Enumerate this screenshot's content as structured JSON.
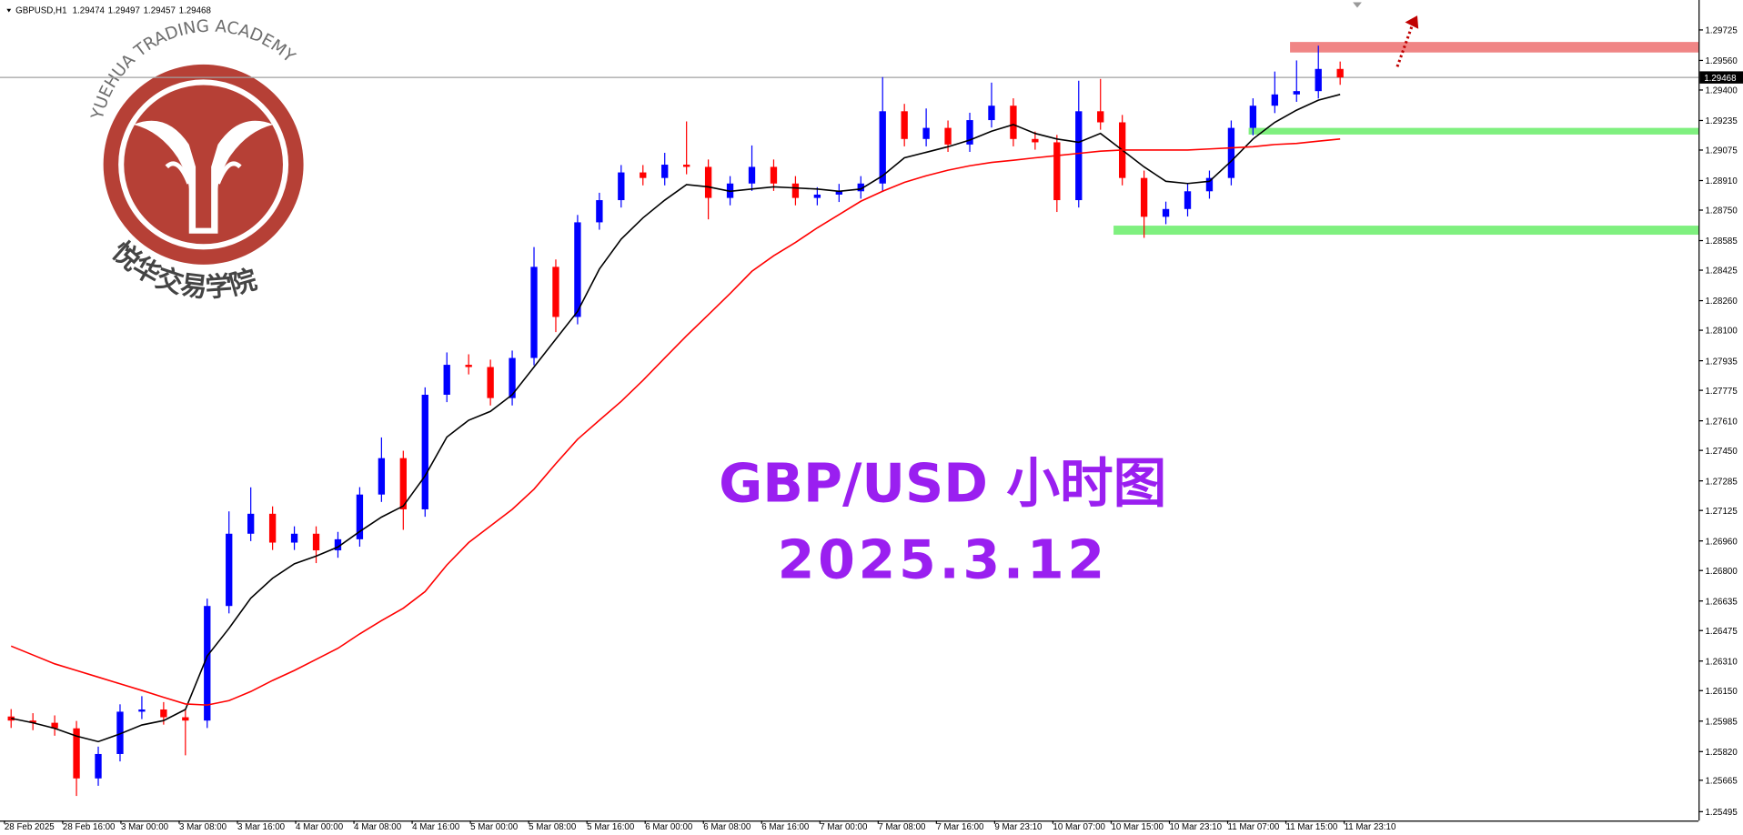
{
  "chart_data": {
    "type": "candlestick",
    "symbol": "GBPUSD,H1",
    "ohlc": [
      1.29474,
      1.29497,
      1.29457,
      1.29468
    ],
    "title": "GBP/USD 小时图",
    "subtitle": "2025.3.12",
    "watermark": {
      "arc": "YUEHUA TRADING ACADEMY",
      "name": "悦华交易学院"
    },
    "xlabels": [
      "28 Feb 2025",
      "28 Feb 16:00",
      "3 Mar 00:00",
      "3 Mar 08:00",
      "3 Mar 16:00",
      "4 Mar 00:00",
      "4 Mar 08:00",
      "4 Mar 16:00",
      "5 Mar 00:00",
      "5 Mar 08:00",
      "5 Mar 16:00",
      "6 Mar 00:00",
      "6 Mar 08:00",
      "6 Mar 16:00",
      "7 Mar 00:00",
      "7 Mar 08:00",
      "7 Mar 16:00",
      "9 Mar 23:10",
      "10 Mar 07:00",
      "10 Mar 15:00",
      "10 Mar 23:10",
      "11 Mar 07:00",
      "11 Mar 15:00",
      "11 Mar 23:10"
    ],
    "ylim": [
      1.25447,
      1.29887
    ],
    "yticks": [
      1.29725,
      {
        "value": 1.2956,
        "label": "1.29560"
      },
      {
        "value": 1.294,
        "label": "1.29400"
      },
      1.29235,
      1.29075,
      {
        "value": 1.2891,
        "label": "1.28910"
      },
      {
        "value": 1.2875,
        "label": "1.28750"
      },
      1.28585,
      1.28425,
      {
        "value": 1.2826,
        "label": "1.28260"
      },
      {
        "value": 1.281,
        "label": "1.28100"
      },
      1.27935,
      1.27775,
      {
        "value": 1.2761,
        "label": "1.27610"
      },
      {
        "value": 1.2745,
        "label": "1.27450"
      },
      1.27285,
      1.27125,
      {
        "value": 1.2696,
        "label": "1.26960"
      },
      {
        "value": 1.268,
        "label": "1.26800"
      },
      1.26635,
      1.26475,
      {
        "value": 1.2631,
        "label": "1.26310"
      },
      {
        "value": 1.2615,
        "label": "1.26150"
      },
      1.25985,
      {
        "value": 1.2582,
        "label": "1.25820"
      },
      1.25665,
      1.25495
    ],
    "bid": 1.29468,
    "candles": {
      "up_color": "#0000ff",
      "down_color": "#ff0000",
      "open": [
        1.2601,
        1.25988,
        1.25976,
        1.25946,
        1.25675,
        1.25807,
        1.26036,
        1.26048,
        1.26006,
        1.25988,
        1.26608,
        1.26999,
        1.27107,
        1.26951,
        1.26999,
        1.26909,
        1.26969,
        1.27211,
        1.27408,
        1.27131,
        1.27751,
        1.27913,
        1.27901,
        1.27733,
        1.2795,
        1.28443,
        1.28172,
        1.28684,
        1.28804,
        1.28954,
        1.28924,
        1.28996,
        1.28984,
        1.28816,
        1.28894,
        1.28984,
        1.28894,
        1.28816,
        1.28834,
        1.28852,
        1.28894,
        1.29285,
        1.29135,
        1.29195,
        1.29105,
        1.29237,
        1.29315,
        1.29135,
        1.29117,
        1.28804,
        1.29285,
        1.29225,
        1.28924,
        1.28714,
        1.28756,
        1.28852,
        1.28924,
        1.29195,
        1.29315,
        1.29376,
        1.29394,
        1.29514
      ],
      "high": [
        1.2605,
        1.26028,
        1.26016,
        1.25986,
        1.25847,
        1.26076,
        1.2612,
        1.26088,
        1.26046,
        1.26648,
        1.2712,
        1.2725,
        1.27147,
        1.27039,
        1.27039,
        1.27009,
        1.27251,
        1.2752,
        1.27448,
        1.27791,
        1.2798,
        1.2797,
        1.27941,
        1.2799,
        1.2855,
        1.28483,
        1.28724,
        1.28844,
        1.28994,
        1.28994,
        1.2906,
        1.2923,
        1.29024,
        1.28934,
        1.291,
        1.29024,
        1.28934,
        1.28874,
        1.28892,
        1.28934,
        1.2947,
        1.29325,
        1.293,
        1.29235,
        1.29277,
        1.2944,
        1.29355,
        1.29175,
        1.29157,
        1.2945,
        1.2946,
        1.29265,
        1.28964,
        1.28796,
        1.28892,
        1.28964,
        1.29235,
        1.29355,
        1.295,
        1.2956,
        1.2964,
        1.29554
      ],
      "low": [
        1.25948,
        1.25936,
        1.25906,
        1.2558,
        1.25635,
        1.25767,
        1.25996,
        1.25966,
        1.258,
        1.25948,
        1.26568,
        1.26959,
        1.26911,
        1.26911,
        1.2684,
        1.26869,
        1.26929,
        1.27171,
        1.2702,
        1.27091,
        1.27711,
        1.27861,
        1.27693,
        1.27693,
        1.2791,
        1.2809,
        1.28132,
        1.28644,
        1.28764,
        1.28884,
        1.28884,
        1.28944,
        1.287,
        1.28776,
        1.28854,
        1.28854,
        1.28776,
        1.28776,
        1.28794,
        1.28812,
        1.28854,
        1.29095,
        1.29095,
        1.29065,
        1.29065,
        1.29197,
        1.29095,
        1.29077,
        1.2874,
        1.28764,
        1.29185,
        1.28884,
        1.286,
        1.28674,
        1.28716,
        1.28812,
        1.28884,
        1.29155,
        1.29275,
        1.29336,
        1.29354,
        1.29428
      ],
      "close": [
        1.25988,
        1.25976,
        1.25946,
        1.25675,
        1.25807,
        1.26036,
        1.26048,
        1.26006,
        1.25988,
        1.26608,
        1.26999,
        1.27107,
        1.26951,
        1.26999,
        1.26909,
        1.26969,
        1.27211,
        1.27408,
        1.27131,
        1.27751,
        1.27913,
        1.27901,
        1.27733,
        1.2795,
        1.28443,
        1.28172,
        1.28684,
        1.28804,
        1.28954,
        1.28924,
        1.28996,
        1.28984,
        1.28816,
        1.28894,
        1.28984,
        1.28894,
        1.28816,
        1.28834,
        1.28852,
        1.28894,
        1.29285,
        1.29135,
        1.29195,
        1.29105,
        1.29237,
        1.29315,
        1.29135,
        1.29117,
        1.28804,
        1.29285,
        1.29225,
        1.28924,
        1.28714,
        1.28756,
        1.28852,
        1.28924,
        1.29195,
        1.29315,
        1.29376,
        1.29394,
        1.29514,
        1.29468
      ]
    },
    "lines": [
      {
        "color": "#000000",
        "values": [
          1.26,
          1.25976,
          1.25946,
          1.25904,
          1.25874,
          1.25916,
          1.25964,
          1.25988,
          1.26048,
          1.26337,
          1.26487,
          1.2665,
          1.26758,
          1.26836,
          1.26878,
          1.26927,
          1.27011,
          1.27089,
          1.27149,
          1.27312,
          1.27522,
          1.27613,
          1.27661,
          1.27751,
          1.27901,
          1.28052,
          1.28202,
          1.28431,
          1.28593,
          1.28708,
          1.28804,
          1.28888,
          1.28876,
          1.28852,
          1.28864,
          1.28876,
          1.2887,
          1.28864,
          1.28852,
          1.28864,
          1.28936,
          1.29033,
          1.29063,
          1.29093,
          1.29129,
          1.29177,
          1.29213,
          1.29165,
          1.29135,
          1.29117,
          1.29165,
          1.29075,
          1.28984,
          1.28906,
          1.28894,
          1.28906,
          1.29015,
          1.29135,
          1.29225,
          1.29291,
          1.29345,
          1.29376
        ]
      },
      {
        "color": "#ff0000",
        "values": [
          1.26391,
          1.26343,
          1.26295,
          1.26259,
          1.26223,
          1.26187,
          1.26151,
          1.26114,
          1.26078,
          1.26072,
          1.26096,
          1.26145,
          1.26205,
          1.26259,
          1.26319,
          1.26379,
          1.26457,
          1.26529,
          1.26596,
          1.26686,
          1.2683,
          1.26951,
          1.27041,
          1.27131,
          1.2724,
          1.27378,
          1.2751,
          1.27613,
          1.27715,
          1.27829,
          1.2795,
          1.2807,
          1.28184,
          1.28299,
          1.28419,
          1.28503,
          1.28575,
          1.28654,
          1.28726,
          1.28798,
          1.28852,
          1.289,
          1.28936,
          1.28966,
          1.2899,
          1.29008,
          1.2902,
          1.29033,
          1.29045,
          1.29057,
          1.29069,
          1.29075,
          1.29075,
          1.29075,
          1.29075,
          1.29081,
          1.29087,
          1.29093,
          1.29105,
          1.29111,
          1.29123,
          1.29135
        ]
      }
    ],
    "zones": [
      {
        "color": "#f08585",
        "top": 1.2966,
        "bottom": 1.29603,
        "start": 58.7
      },
      {
        "color": "#7ff07f",
        "top": 1.29195,
        "bottom": 1.29159,
        "start": 56.8
      },
      {
        "color": "#7ff07f",
        "top": 1.28666,
        "bottom": 1.28617,
        "start": 50.6
      }
    ]
  }
}
